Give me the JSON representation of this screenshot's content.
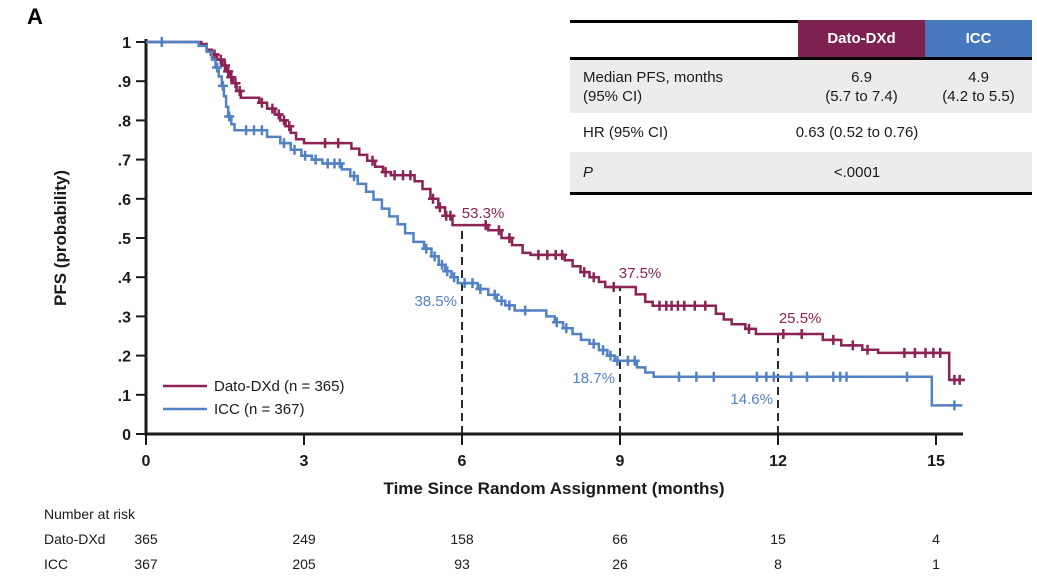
{
  "panel_label": "A",
  "colors": {
    "dato": "#8B2355",
    "dato_header_bg": "#7C2150",
    "icc": "#5282C4",
    "icc_header_bg": "#4878BE",
    "axis": "#1A1A1A",
    "dashed": "#2B2B2B",
    "table_row_shade": "#ECECEC",
    "table_border": "#000000"
  },
  "chart_data": {
    "type": "line",
    "subtype": "kaplan-meier-step",
    "xlabel": "Time Since Random Assignment (months)",
    "ylabel": "PFS (probability)",
    "xlim": [
      0,
      15.6
    ],
    "ylim": [
      0,
      1
    ],
    "xticks": [
      0,
      3,
      6,
      9,
      12,
      15
    ],
    "yticks": [
      {
        "v": 1.0,
        "label": "1"
      },
      {
        "v": 0.9,
        "label": ".9"
      },
      {
        "v": 0.8,
        "label": ".8"
      },
      {
        "v": 0.7,
        "label": ".7"
      },
      {
        "v": 0.6,
        "label": ".6"
      },
      {
        "v": 0.5,
        "label": ".5"
      },
      {
        "v": 0.4,
        "label": ".4"
      },
      {
        "v": 0.3,
        "label": ".3"
      },
      {
        "v": 0.2,
        "label": ".2"
      },
      {
        "v": 0.1,
        "label": ".1"
      },
      {
        "v": 0.0,
        "label": "0"
      }
    ],
    "grid": false,
    "legend_position": "lower-left",
    "series": [
      {
        "key": "dato",
        "name": "Dato-DXd (n = 365)",
        "color": "#8B2355",
        "t_end": 15.55,
        "steps": [
          [
            1.05,
            0.995
          ],
          [
            1.15,
            0.98
          ],
          [
            1.25,
            0.968
          ],
          [
            1.35,
            0.955
          ],
          [
            1.45,
            0.94
          ],
          [
            1.52,
            0.925
          ],
          [
            1.58,
            0.91
          ],
          [
            1.65,
            0.895
          ],
          [
            1.72,
            0.875
          ],
          [
            1.8,
            0.858
          ],
          [
            2.15,
            0.845
          ],
          [
            2.3,
            0.83
          ],
          [
            2.45,
            0.815
          ],
          [
            2.55,
            0.8
          ],
          [
            2.65,
            0.785
          ],
          [
            2.75,
            0.768
          ],
          [
            2.85,
            0.752
          ],
          [
            3.0,
            0.742
          ],
          [
            3.9,
            0.728
          ],
          [
            4.05,
            0.712
          ],
          [
            4.2,
            0.697
          ],
          [
            4.35,
            0.682
          ],
          [
            4.5,
            0.668
          ],
          [
            4.65,
            0.66
          ],
          [
            5.1,
            0.645
          ],
          [
            5.25,
            0.625
          ],
          [
            5.4,
            0.6
          ],
          [
            5.55,
            0.578
          ],
          [
            5.68,
            0.557
          ],
          [
            5.82,
            0.533
          ],
          [
            6.5,
            0.52
          ],
          [
            6.75,
            0.5
          ],
          [
            6.95,
            0.482
          ],
          [
            7.15,
            0.462
          ],
          [
            7.3,
            0.457
          ],
          [
            7.95,
            0.443
          ],
          [
            8.1,
            0.428
          ],
          [
            8.25,
            0.413
          ],
          [
            8.42,
            0.4
          ],
          [
            8.6,
            0.388
          ],
          [
            8.72,
            0.375
          ],
          [
            9.3,
            0.356
          ],
          [
            9.48,
            0.337
          ],
          [
            9.62,
            0.327
          ],
          [
            10.82,
            0.307
          ],
          [
            10.97,
            0.292
          ],
          [
            11.12,
            0.28
          ],
          [
            11.38,
            0.268
          ],
          [
            11.58,
            0.255
          ],
          [
            12.85,
            0.24
          ],
          [
            13.2,
            0.226
          ],
          [
            13.6,
            0.215
          ],
          [
            13.9,
            0.207
          ],
          [
            15.25,
            0.138
          ]
        ],
        "censor_times": [
          1.3,
          1.42,
          1.5,
          1.56,
          1.62,
          1.7,
          1.78,
          2.2,
          2.4,
          2.52,
          2.62,
          2.72,
          3.4,
          3.65,
          4.3,
          4.55,
          4.72,
          4.88,
          5.02,
          5.45,
          5.58,
          5.7,
          5.78,
          6.45,
          6.7,
          6.9,
          7.45,
          7.62,
          7.78,
          7.9,
          8.32,
          8.5,
          8.88,
          9.75,
          9.88,
          9.98,
          10.1,
          10.22,
          10.42,
          10.62,
          11.45,
          12.1,
          12.45,
          13.05,
          13.42,
          13.7,
          14.4,
          14.6,
          14.8,
          14.95,
          15.08,
          15.35,
          15.45
        ]
      },
      {
        "key": "icc",
        "name": "ICC (n = 367)",
        "color": "#5282C4",
        "t_end": 15.5,
        "steps": [
          [
            1.0,
            0.99
          ],
          [
            1.15,
            0.975
          ],
          [
            1.25,
            0.955
          ],
          [
            1.32,
            0.935
          ],
          [
            1.38,
            0.912
          ],
          [
            1.44,
            0.888
          ],
          [
            1.48,
            0.862
          ],
          [
            1.52,
            0.835
          ],
          [
            1.56,
            0.81
          ],
          [
            1.62,
            0.79
          ],
          [
            1.68,
            0.775
          ],
          [
            2.3,
            0.758
          ],
          [
            2.55,
            0.742
          ],
          [
            2.75,
            0.725
          ],
          [
            2.95,
            0.71
          ],
          [
            3.15,
            0.7
          ],
          [
            3.35,
            0.69
          ],
          [
            3.72,
            0.675
          ],
          [
            3.88,
            0.658
          ],
          [
            4.02,
            0.638
          ],
          [
            4.18,
            0.618
          ],
          [
            4.32,
            0.598
          ],
          [
            4.48,
            0.575
          ],
          [
            4.62,
            0.555
          ],
          [
            4.78,
            0.535
          ],
          [
            4.92,
            0.512
          ],
          [
            5.08,
            0.49
          ],
          [
            5.28,
            0.473
          ],
          [
            5.42,
            0.453
          ],
          [
            5.56,
            0.432
          ],
          [
            5.68,
            0.415
          ],
          [
            5.8,
            0.4
          ],
          [
            5.92,
            0.385
          ],
          [
            6.3,
            0.37
          ],
          [
            6.5,
            0.355
          ],
          [
            6.66,
            0.34
          ],
          [
            6.82,
            0.328
          ],
          [
            7.0,
            0.315
          ],
          [
            7.6,
            0.3
          ],
          [
            7.76,
            0.285
          ],
          [
            7.92,
            0.27
          ],
          [
            8.1,
            0.255
          ],
          [
            8.26,
            0.24
          ],
          [
            8.42,
            0.23
          ],
          [
            8.6,
            0.214
          ],
          [
            8.76,
            0.2
          ],
          [
            8.9,
            0.187
          ],
          [
            9.32,
            0.17
          ],
          [
            9.48,
            0.157
          ],
          [
            9.64,
            0.146
          ],
          [
            14.92,
            0.073
          ]
        ],
        "censor_times": [
          0.3,
          1.35,
          1.46,
          1.58,
          1.9,
          2.05,
          2.2,
          2.62,
          2.82,
          3.02,
          3.22,
          3.45,
          3.58,
          3.68,
          3.95,
          5.32,
          5.48,
          5.62,
          5.72,
          5.85,
          6.05,
          6.2,
          6.35,
          6.62,
          6.75,
          6.9,
          7.2,
          7.8,
          7.98,
          8.5,
          8.68,
          8.82,
          8.95,
          9.15,
          9.28,
          10.12,
          10.45,
          10.78,
          11.6,
          11.78,
          11.92,
          12.25,
          12.55,
          13.05,
          13.18,
          13.3,
          14.45,
          15.35
        ]
      }
    ],
    "dashed_lines": [
      {
        "month": 6,
        "top_prob": 0.533
      },
      {
        "month": 9,
        "top_prob": 0.375
      },
      {
        "month": 12,
        "top_prob": 0.255
      }
    ],
    "milestone_labels": [
      {
        "series": "dato",
        "month": 6,
        "rate": "53.3%",
        "label_month": 6.4,
        "label_prob": 0.551
      },
      {
        "series": "icc",
        "month": 6,
        "rate": "38.5%",
        "label_month": 5.5,
        "label_prob": 0.327
      },
      {
        "series": "dato",
        "month": 9,
        "rate": "37.5%",
        "label_month": 9.38,
        "label_prob": 0.398
      },
      {
        "series": "icc",
        "month": 9,
        "rate": "18.7%",
        "label_month": 8.5,
        "label_prob": 0.13
      },
      {
        "series": "dato",
        "month": 12,
        "rate": "25.5%",
        "label_month": 12.42,
        "label_prob": 0.283
      },
      {
        "series": "icc",
        "month": 12,
        "rate": "14.6%",
        "label_month": 11.5,
        "label_prob": 0.076
      }
    ]
  },
  "stats_table": {
    "header_dato": "Dato-DXd",
    "header_icc": "ICC",
    "median": {
      "label_line1": "Median PFS, months",
      "label_line2": "(95% CI)",
      "dato_line1": "6.9",
      "dato_line2": "(5.7 to 7.4)",
      "icc_line1": "4.9",
      "icc_line2": "(4.2 to 5.5)"
    },
    "hr": {
      "label": "HR (95% CI)",
      "value": "0.63 (0.52 to 0.76)"
    },
    "p": {
      "label": "P",
      "value": "<.0001"
    }
  },
  "number_at_risk": {
    "title": "Number at risk",
    "rows": [
      {
        "label": "Dato-DXd",
        "values": [
          "365",
          "249",
          "158",
          "66",
          "15",
          "4"
        ]
      },
      {
        "label": "ICC",
        "values": [
          "367",
          "205",
          "93",
          "26",
          "8",
          "1"
        ]
      }
    ]
  }
}
